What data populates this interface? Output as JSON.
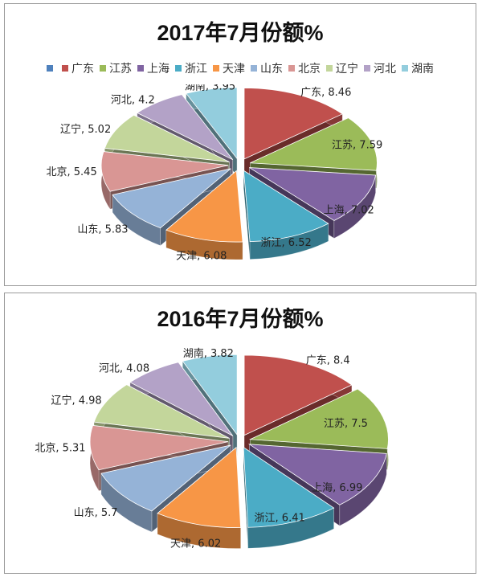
{
  "chart_data": [
    {
      "type": "pie",
      "title": "2017年7月份额%",
      "legend": [
        "",
        "广东",
        "江苏",
        "上海",
        "浙江",
        "天津",
        "山东",
        "北京",
        "辽宁",
        "河北",
        "湖南"
      ],
      "categories": [
        "广东",
        "江苏",
        "上海",
        "浙江",
        "天津",
        "山东",
        "北京",
        "辽宁",
        "河北",
        "湖南"
      ],
      "values": [
        8.46,
        7.59,
        7.02,
        6.52,
        6.08,
        5.83,
        5.45,
        5.02,
        4.2,
        3.95
      ],
      "data_labels": [
        "广东, 8.46",
        "江苏, 7.59",
        "上海, 7.02",
        "浙江, 6.52",
        "天津, 6.08",
        "山东, 5.83",
        "北京, 5.45",
        "辽宁, 5.02",
        "河北, 4.2",
        "湖南, 3.95"
      ],
      "colors": [
        "#C0504D",
        "#9BBB59",
        "#8064A2",
        "#4BACC6",
        "#F79646",
        "#95B3D7",
        "#D99694",
        "#C3D69B",
        "#B3A2C7",
        "#93CDDD"
      ],
      "legend_blank_color": "#4F81BD",
      "legend_position": "top"
    },
    {
      "type": "pie",
      "title": "2016年7月份额%",
      "categories": [
        "广东",
        "江苏",
        "上海",
        "浙江",
        "天津",
        "山东",
        "北京",
        "辽宁",
        "河北",
        "湖南"
      ],
      "values": [
        8.4,
        7.5,
        6.99,
        6.41,
        6.02,
        5.7,
        5.31,
        4.98,
        4.08,
        3.82
      ],
      "data_labels": [
        "广东, 8.4",
        "江苏, 7.5",
        "上海, 6.99",
        "浙江, 6.41",
        "天津, 6.02",
        "山东, 5.7",
        "北京, 5.31",
        "辽宁, 4.98",
        "河北, 4.08",
        "湖南, 3.82"
      ],
      "colors": [
        "#C0504D",
        "#9BBB59",
        "#8064A2",
        "#4BACC6",
        "#F79646",
        "#95B3D7",
        "#D99694",
        "#C3D69B",
        "#B3A2C7",
        "#93CDDD"
      ]
    }
  ]
}
